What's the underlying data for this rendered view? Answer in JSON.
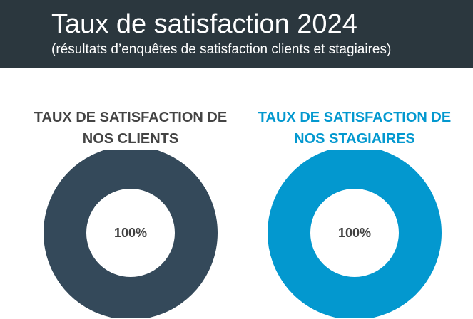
{
  "header": {
    "title": "Taux de satisfaction 2024",
    "subtitle": "(résultats d’enquêtes de satisfaction clients et stagiaires)"
  },
  "colors": {
    "header_bg": "#2b373e",
    "clients": "#34495a",
    "stagiaires": "#0398cf",
    "center_text": "#404040",
    "heading_clients": "#444444"
  },
  "chart_data": [
    {
      "type": "pie",
      "title_lines": [
        "TAUX DE SATISFACTION DE",
        "NOS CLIENTS"
      ],
      "values": [
        100
      ],
      "center_label": "100%",
      "color": "#34495a"
    },
    {
      "type": "pie",
      "title_lines": [
        "TAUX DE SATISFACTION DE",
        "NOS STAGIAIRES"
      ],
      "values": [
        100
      ],
      "center_label": "100%",
      "color": "#0398cf"
    }
  ]
}
